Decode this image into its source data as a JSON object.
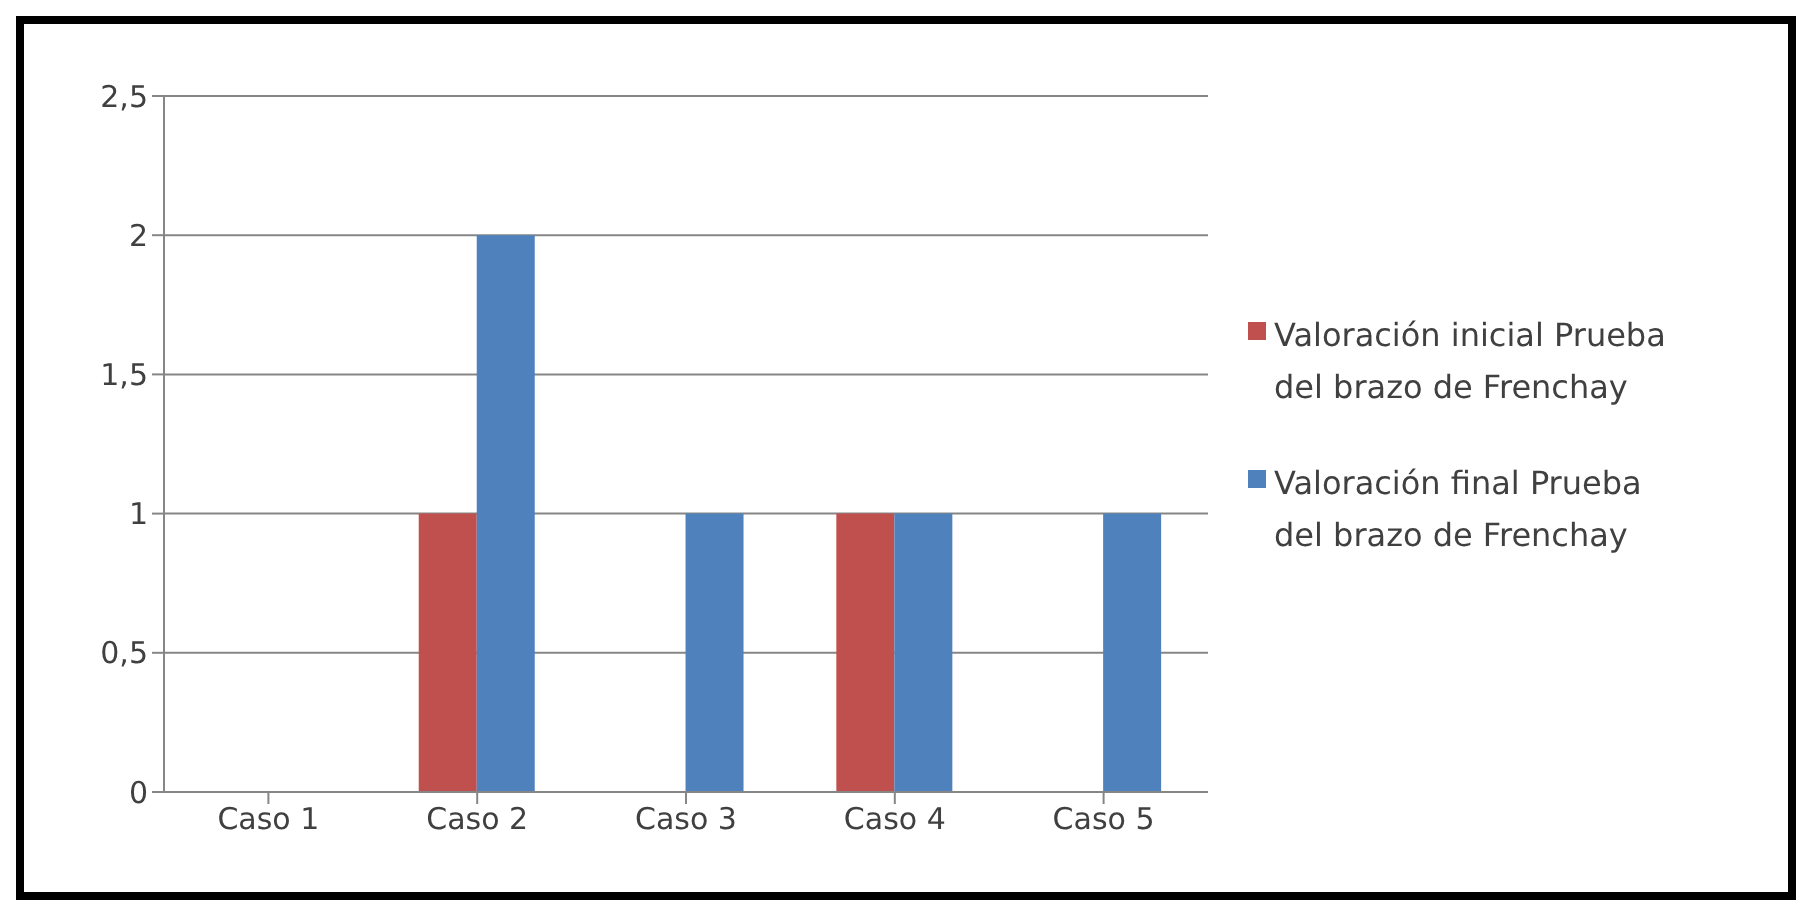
{
  "chart_data": {
    "type": "bar",
    "categories": [
      "Caso 1",
      "Caso 2",
      "Caso 3",
      "Caso 4",
      "Caso 5"
    ],
    "series": [
      {
        "name": "Valoración inicial Prueba del brazo de Frenchay",
        "color": "#c0504d",
        "values": [
          0,
          1,
          0,
          1,
          0
        ]
      },
      {
        "name": "Valoración final Prueba del brazo de Frenchay",
        "color": "#4f81bd",
        "values": [
          0,
          2,
          1,
          1,
          1
        ]
      }
    ],
    "ylim": [
      0,
      2.5
    ],
    "yticks": [
      0,
      {
        "value": 0.5,
        "label": "0,5"
      },
      1,
      {
        "value": 1.5,
        "label": "1,5"
      },
      2,
      {
        "value": 2.5,
        "label": "2,5"
      }
    ],
    "grid": "y",
    "legend": "right"
  }
}
